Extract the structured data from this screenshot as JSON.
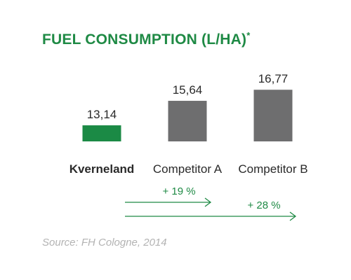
{
  "title": "FUEL CONSUMPTION (L/HA)",
  "title_mark": "*",
  "source": "Source: FH Cologne, 2014",
  "colors": {
    "brand_green": "#1f8a45",
    "bar_green": "#1b8a45",
    "bar_gray": "#6e6e6f",
    "text": "#2a2a2a",
    "source_gray": "#b3b3b3"
  },
  "chart_data": {
    "type": "bar",
    "title": "FUEL CONSUMPTION (L/HA)*",
    "categories": [
      "Kverneland",
      "Competitor A",
      "Competitor B"
    ],
    "values": [
      13.14,
      15.64,
      16.77
    ],
    "value_labels": [
      "13,14",
      "15,64",
      "16,77"
    ],
    "highlight_index": 0,
    "grid": false,
    "ylim": [
      11.5,
      17.5
    ],
    "annotations": [
      {
        "text": "+ 19 %",
        "from": "Kverneland",
        "to": "Competitor A"
      },
      {
        "text": "+ 28 %",
        "from": "Kverneland",
        "to": "Competitor B"
      }
    ]
  }
}
